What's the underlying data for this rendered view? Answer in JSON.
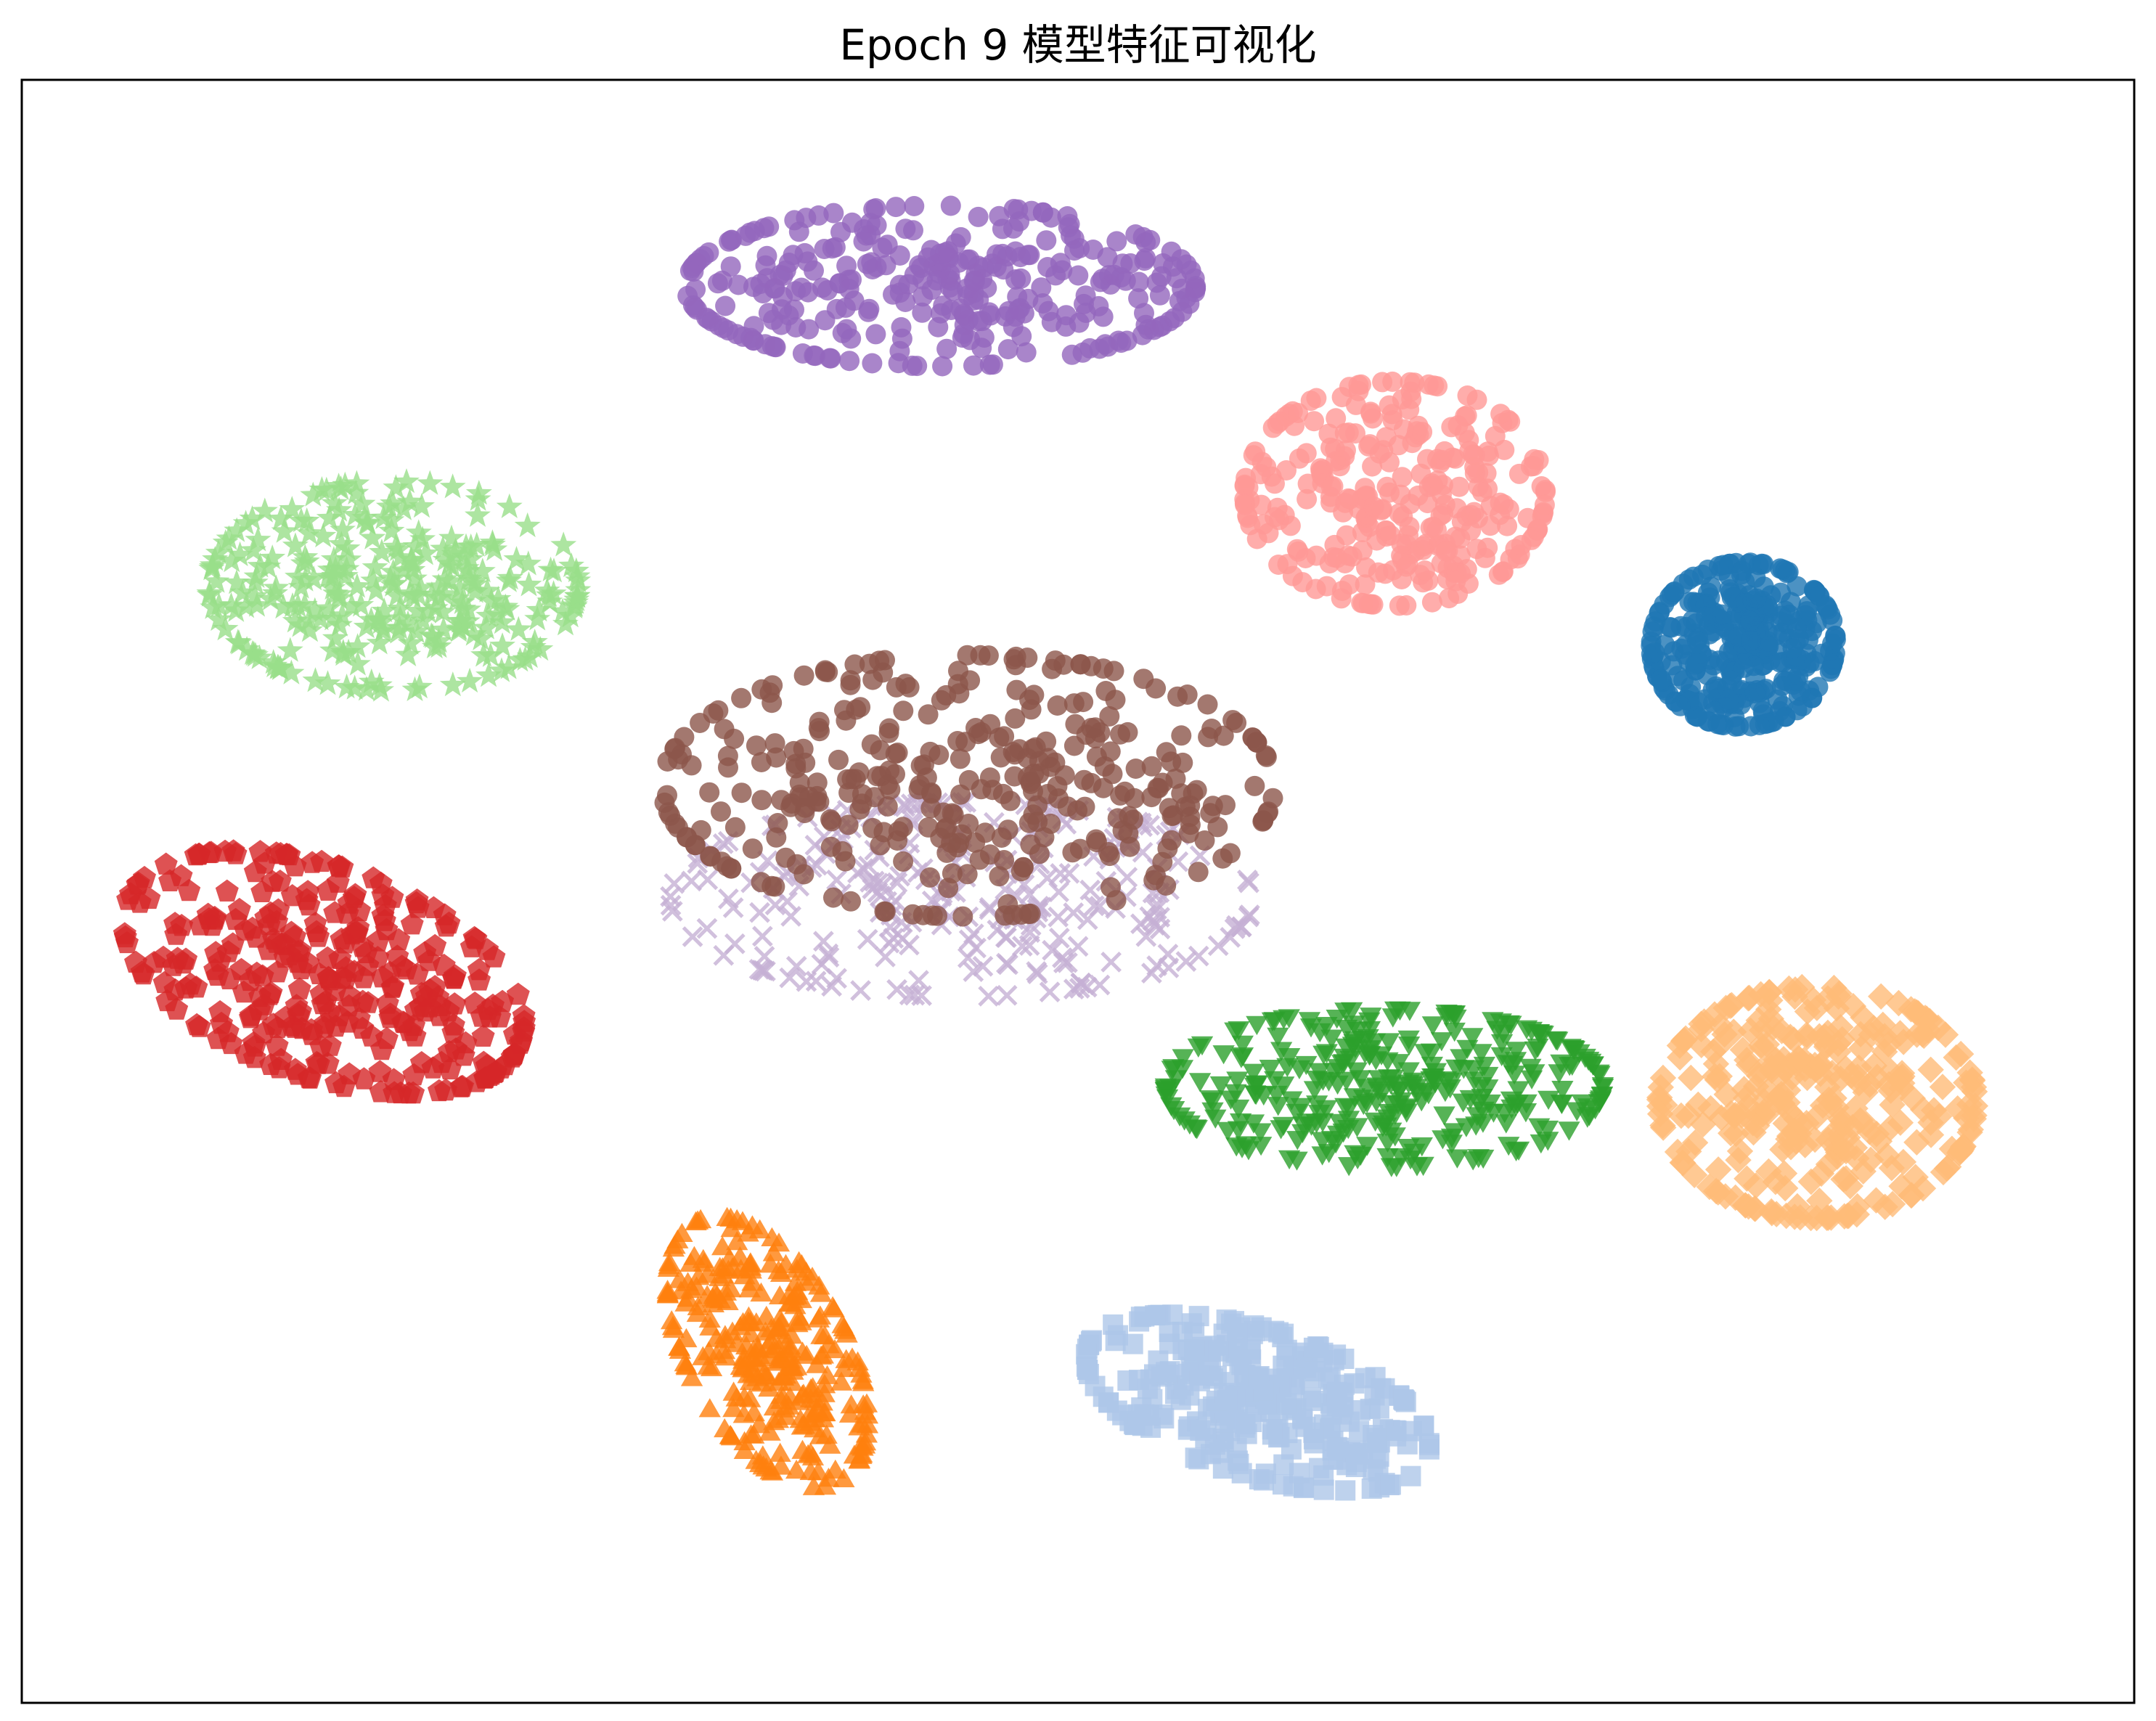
{
  "chart_data": {
    "type": "scatter",
    "title": "Epoch 9 模型特征可视化",
    "xlabel": "",
    "ylabel": "",
    "xlim": [
      0,
      100
    ],
    "ylim": [
      0,
      100
    ],
    "axes_ticks": false,
    "grid": false,
    "legend": "none",
    "series": [
      {
        "marker": "circle",
        "color": "#1f77b4",
        "center": [
          81.5,
          65.2
        ],
        "spread": [
          3.8,
          4.4
        ],
        "angle": -5,
        "count": 320
      },
      {
        "marker": "square",
        "color": "#aec7e8",
        "center": [
          58.5,
          18.5
        ],
        "spread": [
          7.6,
          3.8
        ],
        "angle": -25,
        "count": 300
      },
      {
        "marker": "triangle-up",
        "color": "#ff7f0e",
        "center": [
          35.3,
          21.5
        ],
        "spread": [
          3.4,
          7.6
        ],
        "angle": 20,
        "count": 300
      },
      {
        "marker": "diamond",
        "color": "#ffbb78",
        "center": [
          85.0,
          37.0
        ],
        "spread": [
          6.5,
          6.2
        ],
        "angle": 0,
        "count": 320
      },
      {
        "marker": "triangle-down",
        "color": "#2ca02c",
        "center": [
          64.5,
          38.0
        ],
        "spread": [
          9.0,
          4.2
        ],
        "angle": 0,
        "count": 340
      },
      {
        "marker": "star",
        "color": "#98df8a",
        "center": [
          17.6,
          68.8
        ],
        "spread": [
          7.6,
          5.6
        ],
        "angle": 0,
        "count": 300
      },
      {
        "marker": "pentagon",
        "color": "#d62728",
        "center": [
          14.3,
          45.0
        ],
        "spread": [
          9.0,
          5.4
        ],
        "angle": -30,
        "count": 320
      },
      {
        "marker": "circle",
        "color": "#ff9896",
        "center": [
          65.0,
          74.5
        ],
        "spread": [
          6.2,
          6.0
        ],
        "angle": 0,
        "count": 300
      },
      {
        "marker": "circle",
        "color": "#9467bd",
        "center": [
          43.5,
          87.3
        ],
        "spread": [
          10.5,
          4.3
        ],
        "angle": 0,
        "count": 320
      },
      {
        "marker": "x",
        "color": "#c5b0d5",
        "center": [
          44.5,
          49.5
        ],
        "spread": [
          12.0,
          5.2
        ],
        "angle": 0,
        "count": 260
      },
      {
        "marker": "circle",
        "color": "#8c564b",
        "center": [
          44.8,
          56.5
        ],
        "spread": [
          12.6,
          7.0
        ],
        "angle": 0,
        "count": 360
      }
    ]
  }
}
